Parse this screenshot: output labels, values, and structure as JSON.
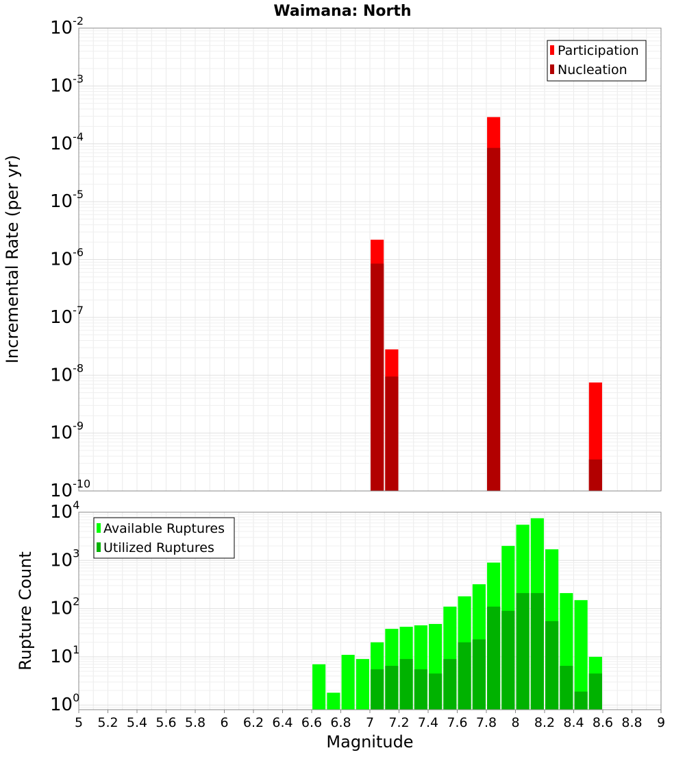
{
  "chart_data": [
    {
      "type": "bar",
      "title": "Waimana: North",
      "ylabel": "Incremental Rate (per yr)",
      "xlabel": "",
      "yscale": "log",
      "ylim": [
        1e-10,
        0.01
      ],
      "xlim": [
        5,
        9
      ],
      "y_ticks": [
        {
          "base": "10",
          "exp": "-10"
        },
        {
          "base": "10",
          "exp": "-9"
        },
        {
          "base": "10",
          "exp": "-8"
        },
        {
          "base": "10",
          "exp": "-7"
        },
        {
          "base": "10",
          "exp": "-6"
        },
        {
          "base": "10",
          "exp": "-5"
        },
        {
          "base": "10",
          "exp": "-4"
        },
        {
          "base": "10",
          "exp": "-3"
        },
        {
          "base": "10",
          "exp": "-2"
        }
      ],
      "legend_position": "top-right",
      "bar_width": 0.09,
      "series": [
        {
          "name": "Participation",
          "color": "#ff0000",
          "points": [
            {
              "x": 7.05,
              "y": 2.2e-06
            },
            {
              "x": 7.15,
              "y": 2.8e-08
            },
            {
              "x": 7.85,
              "y": 0.00029
            },
            {
              "x": 8.55,
              "y": 7.5e-09
            }
          ]
        },
        {
          "name": "Nucleation",
          "color": "#b20000",
          "points": [
            {
              "x": 7.05,
              "y": 8.5e-07
            },
            {
              "x": 7.15,
              "y": 9.5e-09
            },
            {
              "x": 7.85,
              "y": 8.5e-05
            },
            {
              "x": 8.55,
              "y": 3.5e-10
            }
          ]
        }
      ]
    },
    {
      "type": "bar",
      "title": "",
      "ylabel": "Rupture Count",
      "xlabel": "Magnitude",
      "yscale": "log",
      "ylim": [
        0.8,
        10000.0
      ],
      "xlim": [
        5,
        9
      ],
      "y_ticks": [
        {
          "base": "10",
          "exp": "0",
          "value": 1
        },
        {
          "base": "10",
          "exp": "1",
          "value": 10
        },
        {
          "base": "10",
          "exp": "2",
          "value": 100
        },
        {
          "base": "10",
          "exp": "3",
          "value": 1000
        },
        {
          "base": "10",
          "exp": "4",
          "value": 10000
        }
      ],
      "x_ticks": [
        "5",
        "5.2",
        "5.4",
        "5.6",
        "5.8",
        "6",
        "6.2",
        "6.4",
        "6.6",
        "6.8",
        "7",
        "7.2",
        "7.4",
        "7.6",
        "7.8",
        "8",
        "8.2",
        "8.4",
        "8.6",
        "8.8",
        "9"
      ],
      "legend_position": "top-left",
      "bar_width": 0.09,
      "series": [
        {
          "name": "Available Ruptures",
          "color": "#00ff00",
          "points": [
            {
              "x": 6.65,
              "y": 7
            },
            {
              "x": 6.75,
              "y": 1.8
            },
            {
              "x": 6.85,
              "y": 11
            },
            {
              "x": 6.95,
              "y": 9
            },
            {
              "x": 7.05,
              "y": 20
            },
            {
              "x": 7.15,
              "y": 38
            },
            {
              "x": 7.25,
              "y": 42
            },
            {
              "x": 7.35,
              "y": 45
            },
            {
              "x": 7.45,
              "y": 48
            },
            {
              "x": 7.55,
              "y": 110
            },
            {
              "x": 7.65,
              "y": 180
            },
            {
              "x": 7.75,
              "y": 320
            },
            {
              "x": 7.85,
              "y": 900
            },
            {
              "x": 7.95,
              "y": 2000
            },
            {
              "x": 8.05,
              "y": 5500
            },
            {
              "x": 8.15,
              "y": 7500
            },
            {
              "x": 8.25,
              "y": 1700
            },
            {
              "x": 8.35,
              "y": 210
            },
            {
              "x": 8.45,
              "y": 150
            },
            {
              "x": 8.55,
              "y": 10
            }
          ]
        },
        {
          "name": "Utilized Ruptures",
          "color": "#00b200",
          "points": [
            {
              "x": 7.05,
              "y": 5.5
            },
            {
              "x": 7.15,
              "y": 6.5
            },
            {
              "x": 7.25,
              "y": 9
            },
            {
              "x": 7.35,
              "y": 5.5
            },
            {
              "x": 7.45,
              "y": 4.5
            },
            {
              "x": 7.55,
              "y": 9
            },
            {
              "x": 7.65,
              "y": 20
            },
            {
              "x": 7.75,
              "y": 23
            },
            {
              "x": 7.85,
              "y": 110
            },
            {
              "x": 7.95,
              "y": 90
            },
            {
              "x": 8.05,
              "y": 210
            },
            {
              "x": 8.15,
              "y": 210
            },
            {
              "x": 8.25,
              "y": 55
            },
            {
              "x": 8.35,
              "y": 6.5
            },
            {
              "x": 8.45,
              "y": 1.9
            },
            {
              "x": 8.55,
              "y": 4.5
            }
          ]
        }
      ]
    }
  ]
}
